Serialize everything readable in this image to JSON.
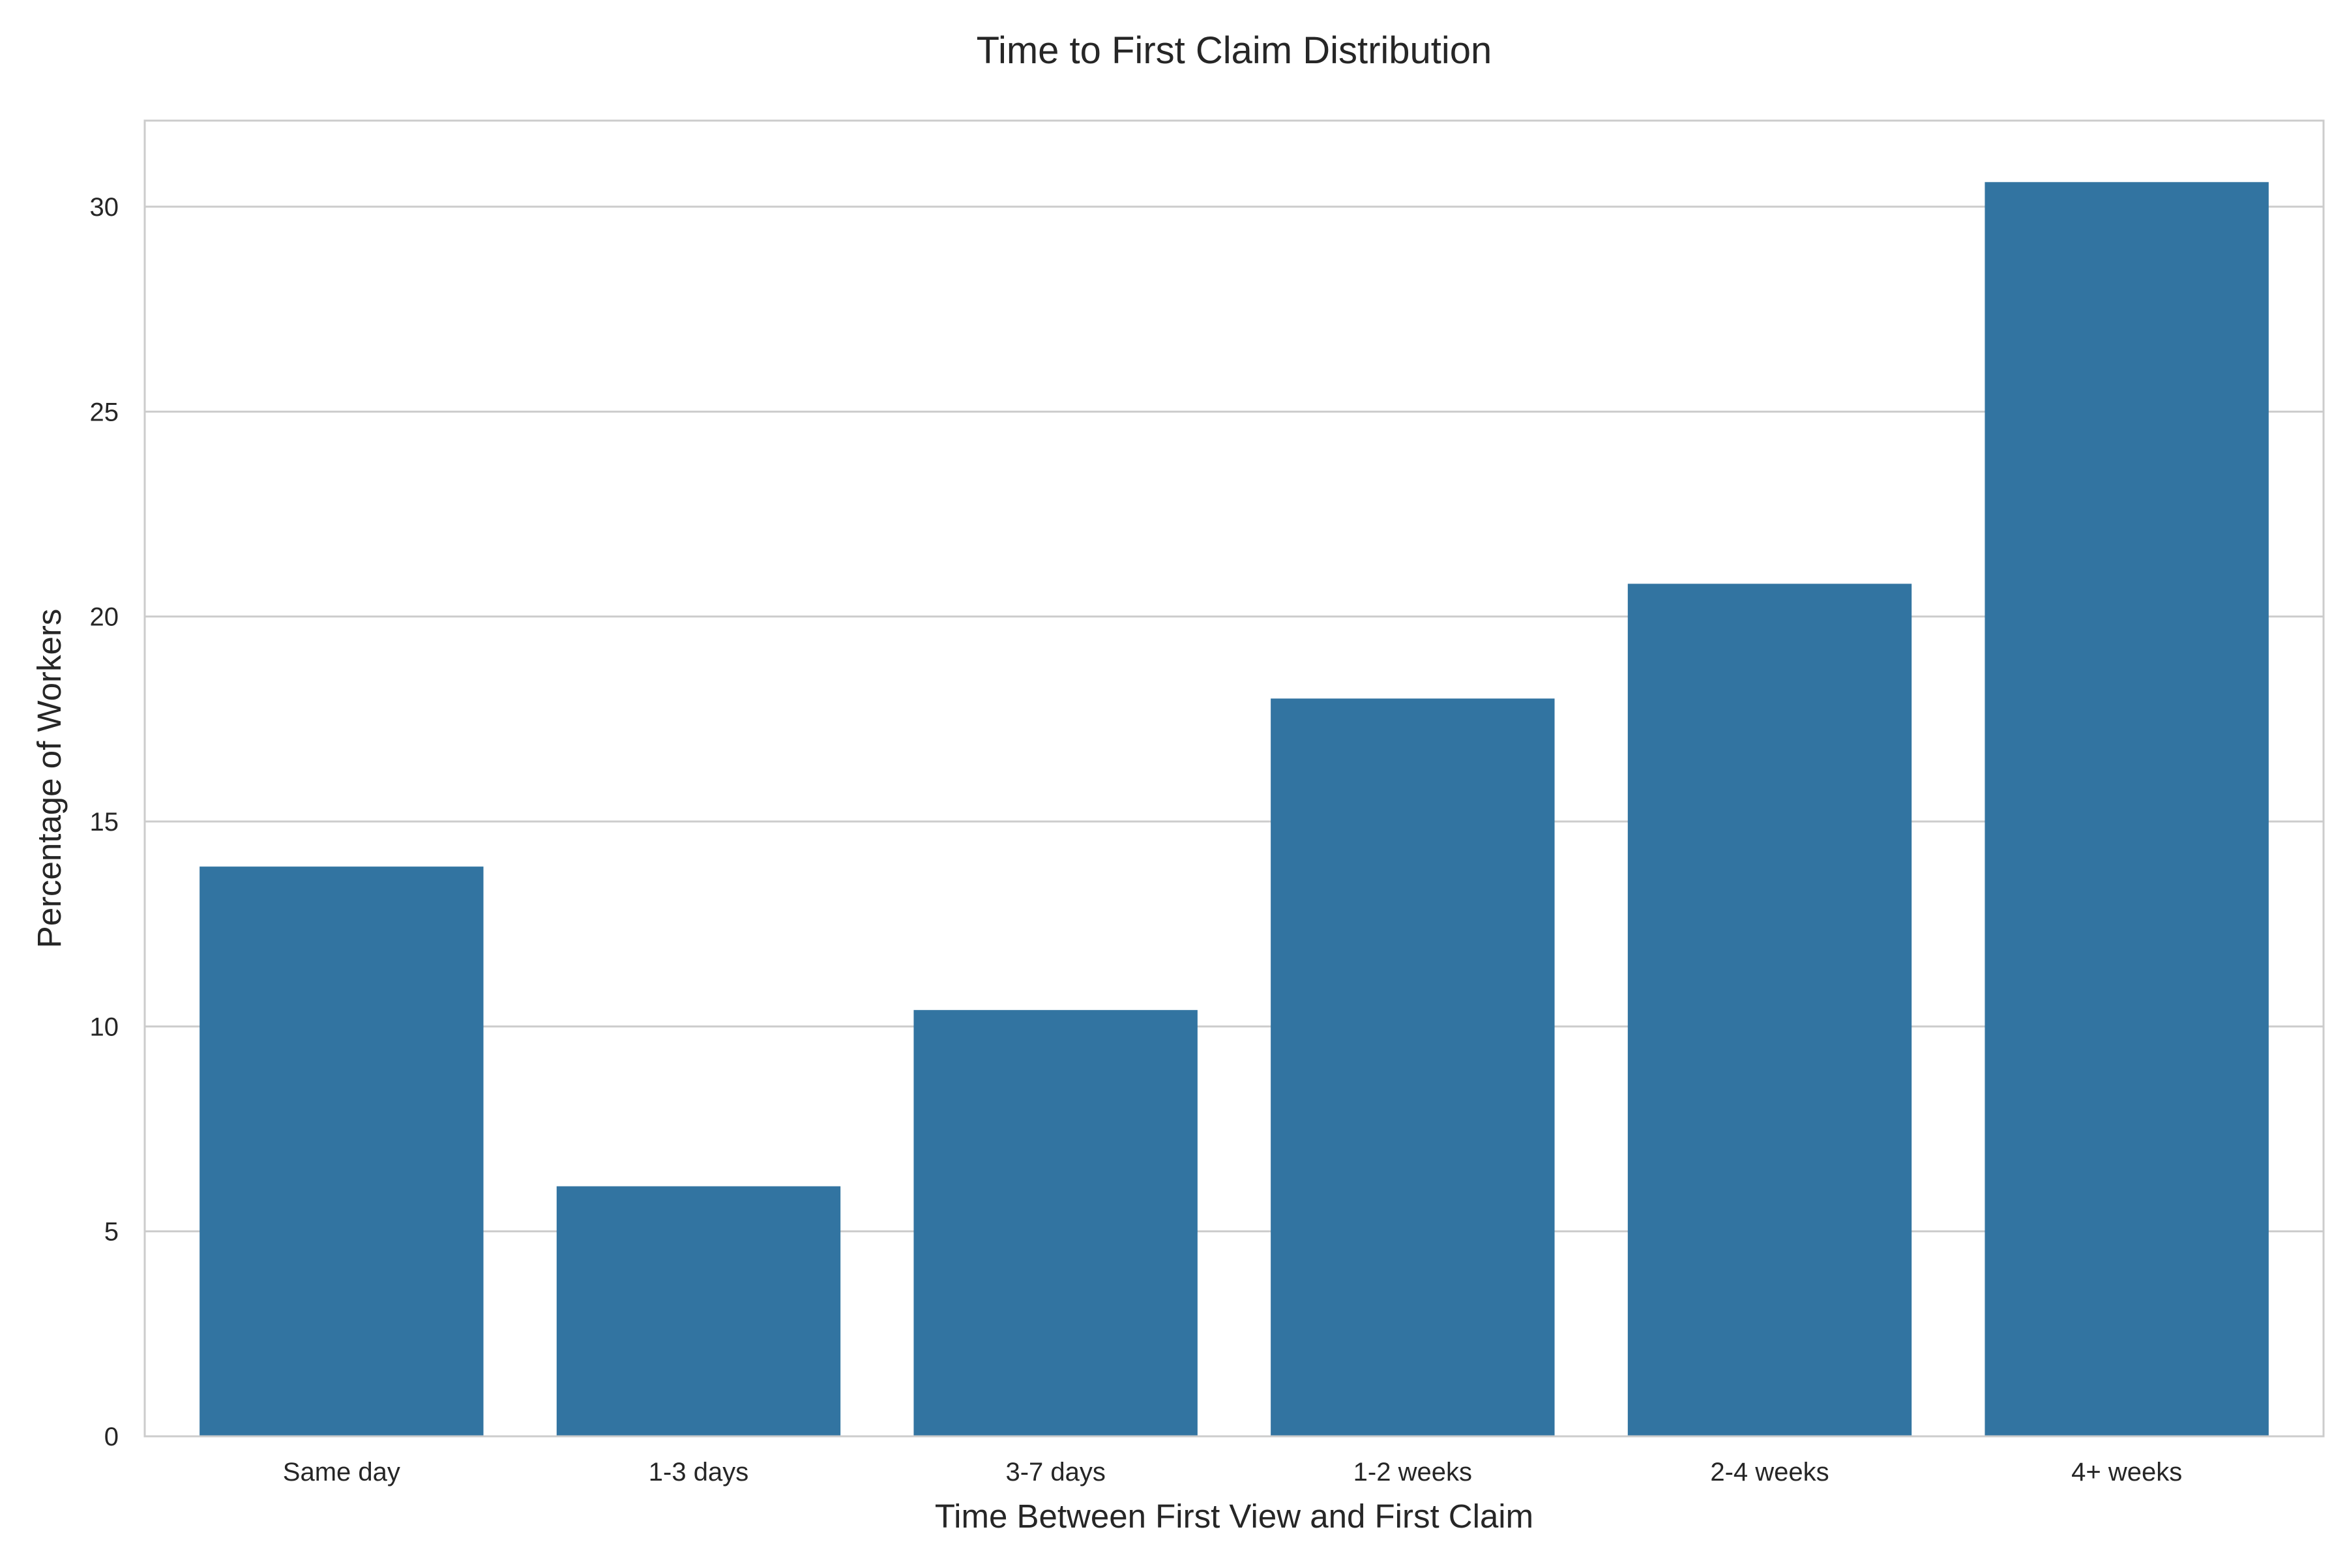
{
  "colors": {
    "bar": "#3274a1",
    "grid": "#cccccc",
    "frame": "#cccccc",
    "text": "#262626",
    "background": "#ffffff"
  },
  "chart_data": {
    "type": "bar",
    "title": "Time to First Claim Distribution",
    "xlabel": "Time Between First View and First Claim",
    "ylabel": "Percentage of Workers",
    "categories": [
      "Same day",
      "1-3 days",
      "3-7 days",
      "1-2 weeks",
      "2-4 weeks",
      "4+ weeks"
    ],
    "values": [
      13.9,
      6.1,
      10.4,
      18.0,
      20.8,
      30.6
    ],
    "ylim": [
      0,
      32.1
    ],
    "yticks": [
      0,
      5,
      10,
      15,
      20,
      25,
      30
    ],
    "grid": "horizontal",
    "legend": "none"
  }
}
